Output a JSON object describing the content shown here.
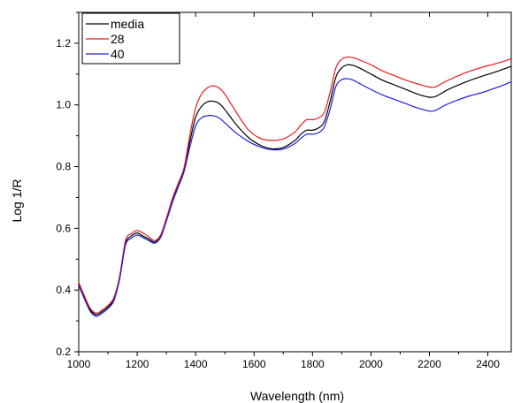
{
  "chart_data": {
    "type": "line",
    "title": "",
    "xlabel": "Wavelength (nm)",
    "ylabel": "Log 1/R",
    "xlim": [
      1000,
      2480
    ],
    "ylim": [
      0.2,
      1.3
    ],
    "x_ticks": [
      1000,
      1200,
      1400,
      1600,
      1800,
      2000,
      2200,
      2400
    ],
    "y_ticks": [
      0.2,
      0.4,
      0.6,
      0.8,
      1.0,
      1.2
    ],
    "x_tick_labels": [
      "1000",
      "1200",
      "1400",
      "1600",
      "1800",
      "2000",
      "2200",
      "2400"
    ],
    "y_tick_labels": [
      "0.2",
      "0.4",
      "0.6",
      "0.8",
      "1.0",
      "1.2"
    ],
    "grid": false,
    "legend_position": "top-left",
    "x": [
      1000,
      1020,
      1040,
      1060,
      1080,
      1100,
      1120,
      1140,
      1160,
      1180,
      1200,
      1220,
      1240,
      1260,
      1280,
      1300,
      1320,
      1340,
      1360,
      1380,
      1400,
      1420,
      1440,
      1460,
      1480,
      1500,
      1540,
      1580,
      1620,
      1660,
      1700,
      1740,
      1760,
      1780,
      1800,
      1820,
      1840,
      1860,
      1880,
      1900,
      1920,
      1940,
      1960,
      2000,
      2040,
      2080,
      2120,
      2160,
      2200,
      2220,
      2240,
      2260,
      2300,
      2340,
      2380,
      2420,
      2450,
      2480
    ],
    "series": [
      {
        "name": "media",
        "color": "#000000",
        "values": [
          0.42,
          0.375,
          0.335,
          0.32,
          0.33,
          0.345,
          0.37,
          0.44,
          0.55,
          0.575,
          0.585,
          0.575,
          0.565,
          0.555,
          0.575,
          0.63,
          0.69,
          0.74,
          0.79,
          0.88,
          0.96,
          0.995,
          1.01,
          1.012,
          1.005,
          0.985,
          0.935,
          0.895,
          0.87,
          0.858,
          0.862,
          0.885,
          0.905,
          0.918,
          0.918,
          0.925,
          0.945,
          1.01,
          1.09,
          1.12,
          1.13,
          1.128,
          1.12,
          1.1,
          1.08,
          1.065,
          1.05,
          1.035,
          1.025,
          1.027,
          1.037,
          1.048,
          1.065,
          1.08,
          1.093,
          1.105,
          1.115,
          1.125
        ]
      },
      {
        "name": "28",
        "color": "#e31a1c",
        "values": [
          0.425,
          0.38,
          0.34,
          0.325,
          0.335,
          0.35,
          0.375,
          0.445,
          0.56,
          0.583,
          0.593,
          0.585,
          0.572,
          0.56,
          0.578,
          0.633,
          0.695,
          0.745,
          0.795,
          0.9,
          0.99,
          1.035,
          1.055,
          1.062,
          1.055,
          1.035,
          0.975,
          0.92,
          0.892,
          0.885,
          0.89,
          0.912,
          0.935,
          0.952,
          0.952,
          0.958,
          0.975,
          1.04,
          1.12,
          1.148,
          1.155,
          1.153,
          1.146,
          1.13,
          1.11,
          1.095,
          1.08,
          1.068,
          1.058,
          1.058,
          1.068,
          1.078,
          1.095,
          1.11,
          1.122,
          1.132,
          1.14,
          1.15
        ]
      },
      {
        "name": "40",
        "color": "#1f1fdc",
        "values": [
          0.415,
          0.37,
          0.33,
          0.315,
          0.325,
          0.34,
          0.365,
          0.435,
          0.545,
          0.568,
          0.578,
          0.57,
          0.56,
          0.552,
          0.57,
          0.623,
          0.682,
          0.733,
          0.782,
          0.862,
          0.932,
          0.958,
          0.965,
          0.965,
          0.958,
          0.942,
          0.908,
          0.882,
          0.864,
          0.855,
          0.857,
          0.875,
          0.892,
          0.905,
          0.905,
          0.91,
          0.928,
          0.985,
          1.06,
          1.082,
          1.085,
          1.08,
          1.07,
          1.05,
          1.032,
          1.018,
          1.004,
          0.99,
          0.98,
          0.982,
          0.992,
          1.002,
          1.017,
          1.03,
          1.04,
          1.053,
          1.063,
          1.075
        ]
      }
    ]
  }
}
